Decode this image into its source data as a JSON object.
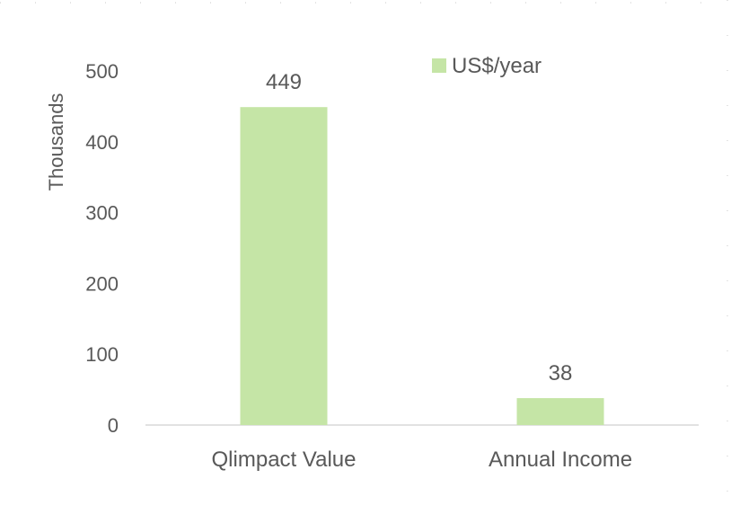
{
  "chart_data": {
    "type": "bar",
    "title": "",
    "xlabel": "",
    "ylabel": "Thousands",
    "categories": [
      "Qlimpact Value",
      "Annual Income"
    ],
    "series": [
      {
        "name": "US$/year",
        "values": [
          449,
          38
        ]
      }
    ],
    "data_labels": [
      "449",
      "38"
    ],
    "ylim": [
      0,
      500
    ],
    "yticks": [
      0,
      100,
      200,
      300,
      400,
      500
    ],
    "ytick_labels": [
      "0",
      "100",
      "200",
      "300",
      "400",
      "500"
    ],
    "grid": false,
    "legend_position": "top-right",
    "colors": {
      "bar": "#c5e5a6",
      "axis": "#d9d9d9",
      "text": "#595959"
    }
  }
}
